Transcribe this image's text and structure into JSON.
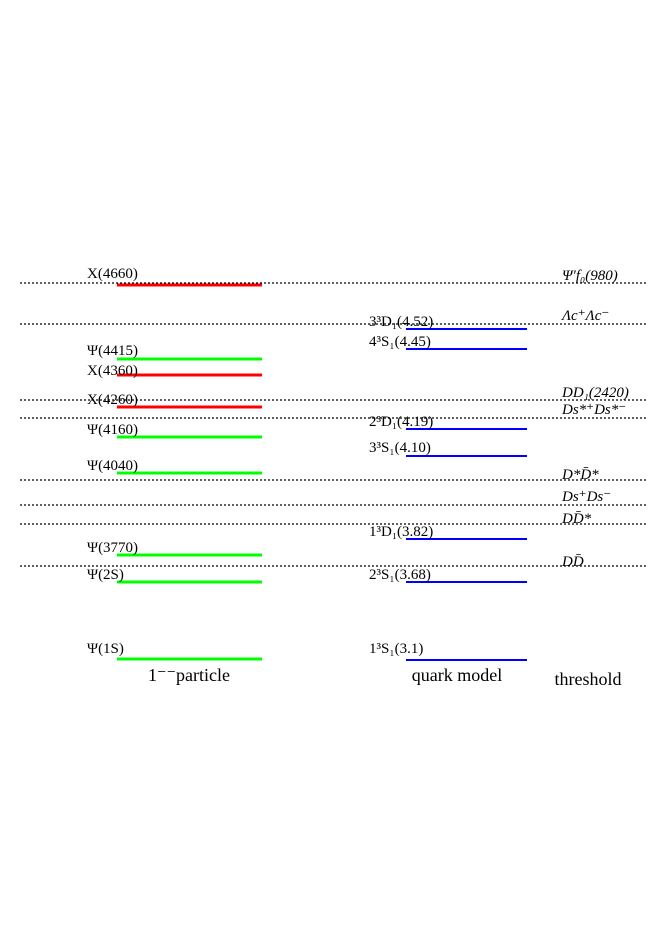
{
  "particles": [
    {
      "label": "X(4660)",
      "color": "#ff0000"
    },
    {
      "label": "Ψ(4415)",
      "color": "#00ff00"
    },
    {
      "label": "X(4360)",
      "color": "#ff0000"
    },
    {
      "label": "X(4260)",
      "color": "#ff0000"
    },
    {
      "label": "Ψ(4160)",
      "color": "#00ff00"
    },
    {
      "label": "Ψ(4040)",
      "color": "#00ff00"
    },
    {
      "label": "Ψ(3770)",
      "color": "#00ff00"
    },
    {
      "label": "Ψ(2S)",
      "color": "#00ff00"
    },
    {
      "label": "Ψ(1S)",
      "color": "#00ff00"
    }
  ],
  "quark_model": [
    {
      "label": "3³D₁(4.52)",
      "color": "#0000ff"
    },
    {
      "label": "4³S₁(4.45)",
      "color": "#0000ff"
    },
    {
      "label": "2³D₁(4.19)",
      "color": "#0000ff"
    },
    {
      "label": "3³S₁(4.10)",
      "color": "#0000ff"
    },
    {
      "label": "1³D₁(3.82)",
      "color": "#0000ff"
    },
    {
      "label": "2³S₁(3.68)",
      "color": "#0000ff"
    },
    {
      "label": "1³S₁(3.1)",
      "color": "#0000ff"
    }
  ],
  "thresholds": [
    {
      "label": "Ψ′f₀(980)"
    },
    {
      "label": "Λc⁺Λc⁻"
    },
    {
      "label": "DD₁(2420)"
    },
    {
      "label": "Ds*⁺Ds*⁻"
    },
    {
      "label": "D*D̄*"
    },
    {
      "label": "Ds⁺Ds⁻"
    },
    {
      "label": "DD̄*"
    },
    {
      "label": "DD̄"
    }
  ],
  "column_labels": {
    "particles": "1⁻⁻particle",
    "quark_model": "quark model",
    "thresholds": "threshold"
  }
}
